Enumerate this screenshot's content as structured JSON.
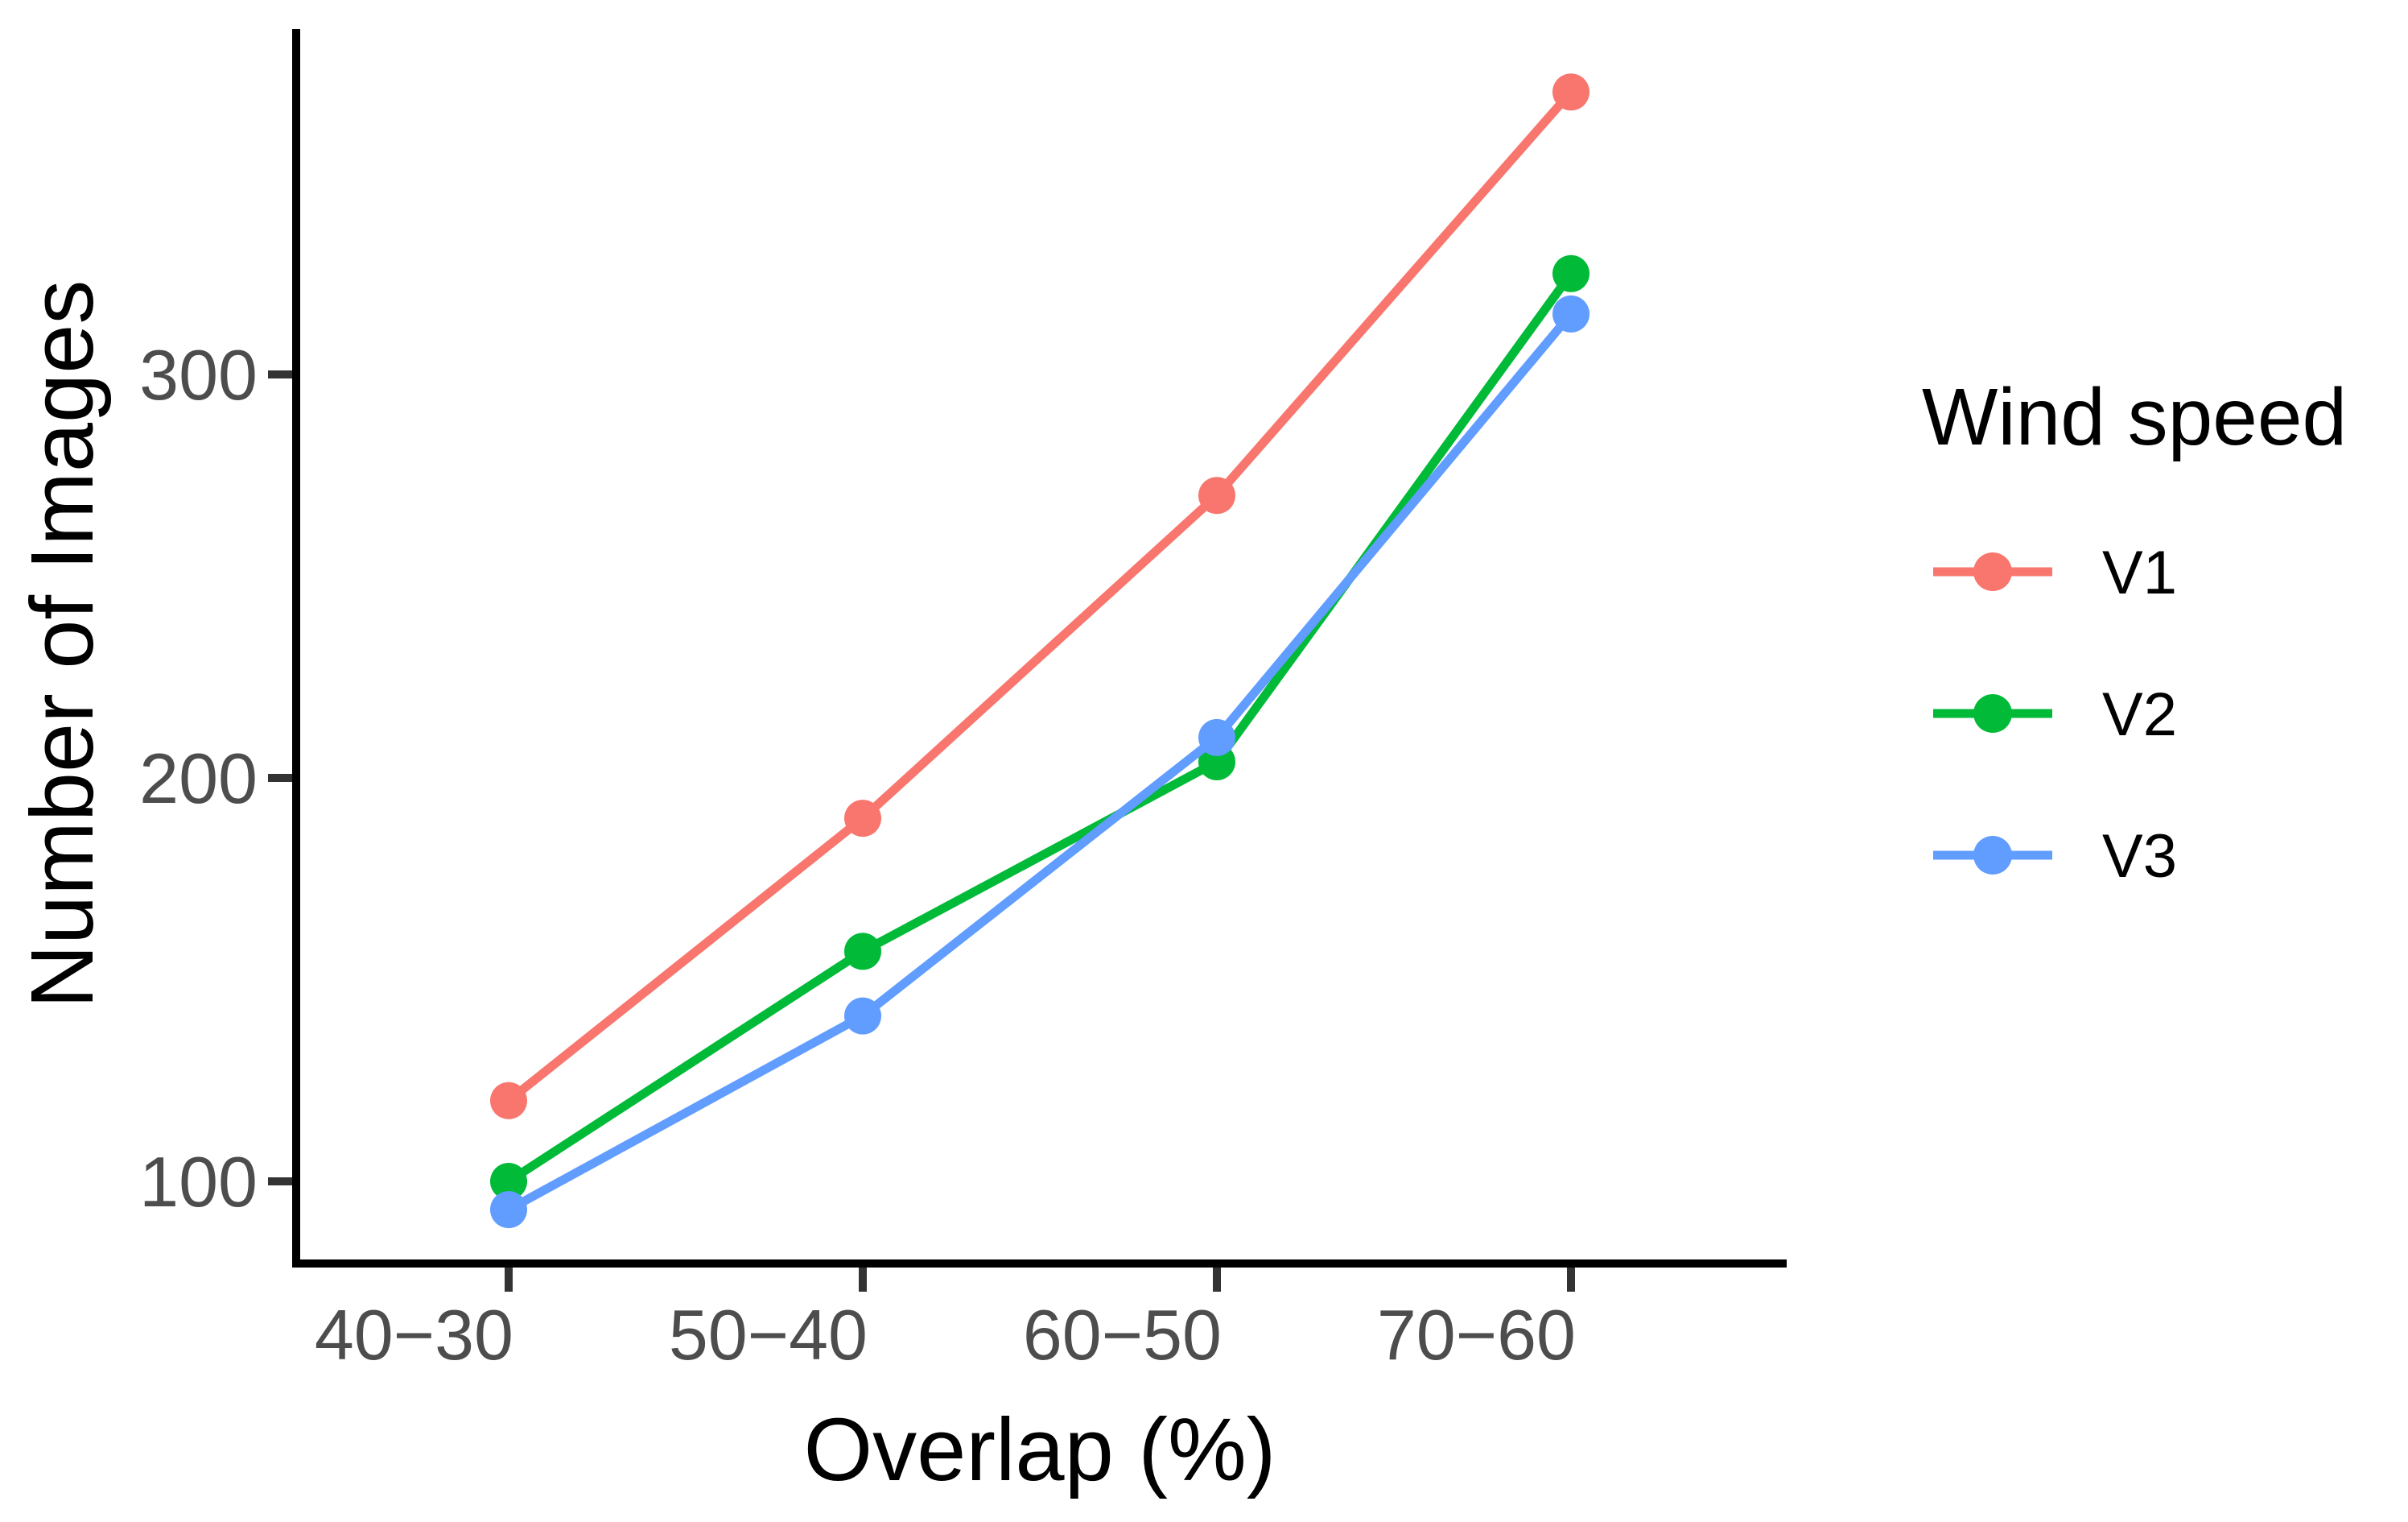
{
  "chart": {
    "y_axis_title": "Number of Images",
    "x_axis_title": "Overlap (%)"
  },
  "legend": {
    "title": "Wind speed",
    "items": [
      {
        "label": "V1",
        "color": "#F8766D"
      },
      {
        "label": "V2",
        "color": "#00BA38"
      },
      {
        "label": "V3",
        "color": "#619CFF"
      }
    ]
  },
  "chart_data": {
    "type": "line",
    "title": "",
    "xlabel": "Overlap (%)",
    "ylabel": "Number of Images",
    "categories": [
      "40−30",
      "50−40",
      "60−50",
      "70−60"
    ],
    "y_ticks": [
      100,
      200,
      300
    ],
    "ylim": [
      80,
      386
    ],
    "grid": false,
    "legend_title": "Wind speed",
    "legend_position": "right",
    "marker": "circle-on-line",
    "series": [
      {
        "name": "V1",
        "color": "#F8766D",
        "values": [
          120,
          190,
          270,
          370
        ]
      },
      {
        "name": "V2",
        "color": "#00BA38",
        "values": [
          100,
          157,
          204,
          325
        ]
      },
      {
        "name": "V3",
        "color": "#619CFF",
        "values": [
          93,
          141,
          210,
          315
        ]
      }
    ]
  }
}
